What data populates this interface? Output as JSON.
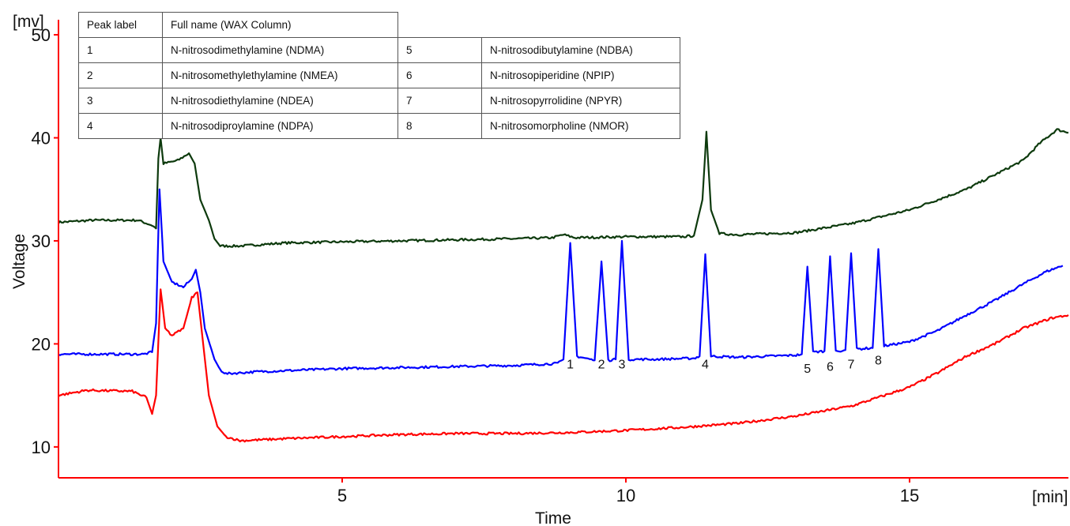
{
  "chart_data": {
    "type": "line",
    "title": "",
    "xlabel": "Time",
    "ylabel": "Voltage",
    "x_unit": "[min]",
    "y_unit": "[mv]",
    "xlim": [
      0,
      17.8
    ],
    "ylim": [
      7,
      51
    ],
    "x_ticks": [
      5,
      10,
      15
    ],
    "y_ticks": [
      10,
      20,
      30,
      40,
      50
    ],
    "grid": false,
    "axis_color": "#ff0000",
    "series": [
      {
        "color": "#0d3a0d",
        "points": [
          [
            0,
            31.8
          ],
          [
            0.6,
            32.0
          ],
          [
            1.4,
            32.0
          ],
          [
            1.65,
            31.5
          ],
          [
            1.72,
            31.2
          ],
          [
            1.76,
            38.0
          ],
          [
            1.8,
            40.0
          ],
          [
            1.85,
            37.5
          ],
          [
            2.1,
            37.8
          ],
          [
            2.3,
            38.5
          ],
          [
            2.4,
            37.5
          ],
          [
            2.5,
            34.0
          ],
          [
            2.65,
            32.0
          ],
          [
            2.75,
            30.2
          ],
          [
            2.85,
            29.5
          ],
          [
            3.2,
            29.5
          ],
          [
            4,
            29.8
          ],
          [
            5,
            29.9
          ],
          [
            6,
            30.0
          ],
          [
            7,
            30.1
          ],
          [
            8,
            30.2
          ],
          [
            8.7,
            30.3
          ],
          [
            8.9,
            30.6
          ],
          [
            9.1,
            30.3
          ],
          [
            10,
            30.4
          ],
          [
            11,
            30.4
          ],
          [
            11.2,
            30.5
          ],
          [
            11.35,
            34.0
          ],
          [
            11.42,
            40.6
          ],
          [
            11.5,
            33.0
          ],
          [
            11.65,
            30.7
          ],
          [
            12,
            30.6
          ],
          [
            13,
            30.8
          ],
          [
            14,
            31.7
          ],
          [
            15,
            33.0
          ],
          [
            16,
            35.0
          ],
          [
            17,
            37.8
          ],
          [
            17.3,
            39.5
          ],
          [
            17.6,
            40.8
          ],
          [
            17.8,
            40.5
          ]
        ],
        "peaks": []
      },
      {
        "color": "#0000ff",
        "points": [
          [
            0,
            19.0
          ],
          [
            1.5,
            19.0
          ],
          [
            1.65,
            19.2
          ],
          [
            1.72,
            22.0
          ],
          [
            1.78,
            35.0
          ],
          [
            1.85,
            28.0
          ],
          [
            2.0,
            26.0
          ],
          [
            2.2,
            25.5
          ],
          [
            2.35,
            26.3
          ],
          [
            2.42,
            27.2
          ],
          [
            2.5,
            25.0
          ],
          [
            2.58,
            21.5
          ],
          [
            2.75,
            18.5
          ],
          [
            2.85,
            17.5
          ],
          [
            2.95,
            17.1
          ],
          [
            3.5,
            17.3
          ],
          [
            5,
            17.6
          ],
          [
            6,
            17.7
          ],
          [
            7,
            17.8
          ],
          [
            8,
            17.9
          ],
          [
            8.8,
            18.1
          ],
          [
            8.9,
            18.5
          ],
          [
            9.02,
            29.8
          ],
          [
            9.14,
            18.8
          ],
          [
            9.45,
            18.4
          ],
          [
            9.57,
            28.0
          ],
          [
            9.69,
            18.4
          ],
          [
            9.82,
            18.5
          ],
          [
            9.93,
            30.0
          ],
          [
            10.05,
            18.5
          ],
          [
            10.5,
            18.5
          ],
          [
            11.2,
            18.6
          ],
          [
            11.3,
            18.8
          ],
          [
            11.4,
            28.7
          ],
          [
            11.5,
            18.8
          ],
          [
            12,
            18.7
          ],
          [
            13,
            18.9
          ],
          [
            13.1,
            19.0
          ],
          [
            13.2,
            27.5
          ],
          [
            13.3,
            19.2
          ],
          [
            13.5,
            19.3
          ],
          [
            13.6,
            28.5
          ],
          [
            13.7,
            19.3
          ],
          [
            13.87,
            19.4
          ],
          [
            13.97,
            28.8
          ],
          [
            14.07,
            19.5
          ],
          [
            14.35,
            19.6
          ],
          [
            14.45,
            29.2
          ],
          [
            14.55,
            19.8
          ],
          [
            15,
            20.2
          ],
          [
            15.5,
            21.3
          ],
          [
            16,
            22.8
          ],
          [
            16.5,
            24.2
          ],
          [
            17,
            25.8
          ],
          [
            17.4,
            27.0
          ],
          [
            17.7,
            27.6
          ]
        ],
        "peaks": [
          {
            "label": "1",
            "x": 9.02,
            "y": 17.6
          },
          {
            "label": "2",
            "x": 9.57,
            "y": 17.6
          },
          {
            "label": "3",
            "x": 9.93,
            "y": 17.6
          },
          {
            "label": "4",
            "x": 11.4,
            "y": 17.6
          },
          {
            "label": "5",
            "x": 13.2,
            "y": 17.2
          },
          {
            "label": "6",
            "x": 13.6,
            "y": 17.4
          },
          {
            "label": "7",
            "x": 13.97,
            "y": 17.6
          },
          {
            "label": "8",
            "x": 14.45,
            "y": 18.0
          }
        ]
      },
      {
        "color": "#ff0000",
        "points": [
          [
            0,
            15.0
          ],
          [
            0.5,
            15.5
          ],
          [
            1.3,
            15.4
          ],
          [
            1.55,
            14.8
          ],
          [
            1.65,
            13.2
          ],
          [
            1.72,
            15.0
          ],
          [
            1.8,
            25.3
          ],
          [
            1.88,
            21.5
          ],
          [
            2.0,
            20.8
          ],
          [
            2.2,
            21.5
          ],
          [
            2.35,
            24.5
          ],
          [
            2.45,
            25.0
          ],
          [
            2.55,
            20.0
          ],
          [
            2.65,
            15.0
          ],
          [
            2.8,
            12.0
          ],
          [
            2.95,
            11.0
          ],
          [
            3.2,
            10.6
          ],
          [
            4,
            10.8
          ],
          [
            5,
            11.0
          ],
          [
            6,
            11.2
          ],
          [
            7,
            11.3
          ],
          [
            8,
            11.3
          ],
          [
            9,
            11.4
          ],
          [
            10,
            11.6
          ],
          [
            11,
            11.9
          ],
          [
            12,
            12.3
          ],
          [
            13,
            13.0
          ],
          [
            14,
            14.0
          ],
          [
            15,
            15.8
          ],
          [
            15.5,
            17.2
          ],
          [
            16,
            18.8
          ],
          [
            16.5,
            20.0
          ],
          [
            17,
            21.5
          ],
          [
            17.5,
            22.5
          ],
          [
            17.8,
            22.8
          ]
        ],
        "peaks": []
      }
    ]
  },
  "legend_table": {
    "header": [
      "Peak label",
      "Full name (WAX Column)"
    ],
    "rows": [
      [
        "1",
        "N-nitrosodimethylamine (NDMA)",
        "5",
        "N-nitrosodibutylamine (NDBA)"
      ],
      [
        "2",
        "N-nitrosomethylethylamine (NMEA)",
        "6",
        "N-nitrosopiperidine (NPIP)"
      ],
      [
        "3",
        "N-nitrosodiethylamine (NDEA)",
        "7",
        "N-nitrosopyrrolidine (NPYR)"
      ],
      [
        "4",
        "N-nitrosodiproylamine (NDPA)",
        "8",
        "N-nitrosomorpholine (NMOR)"
      ]
    ]
  }
}
